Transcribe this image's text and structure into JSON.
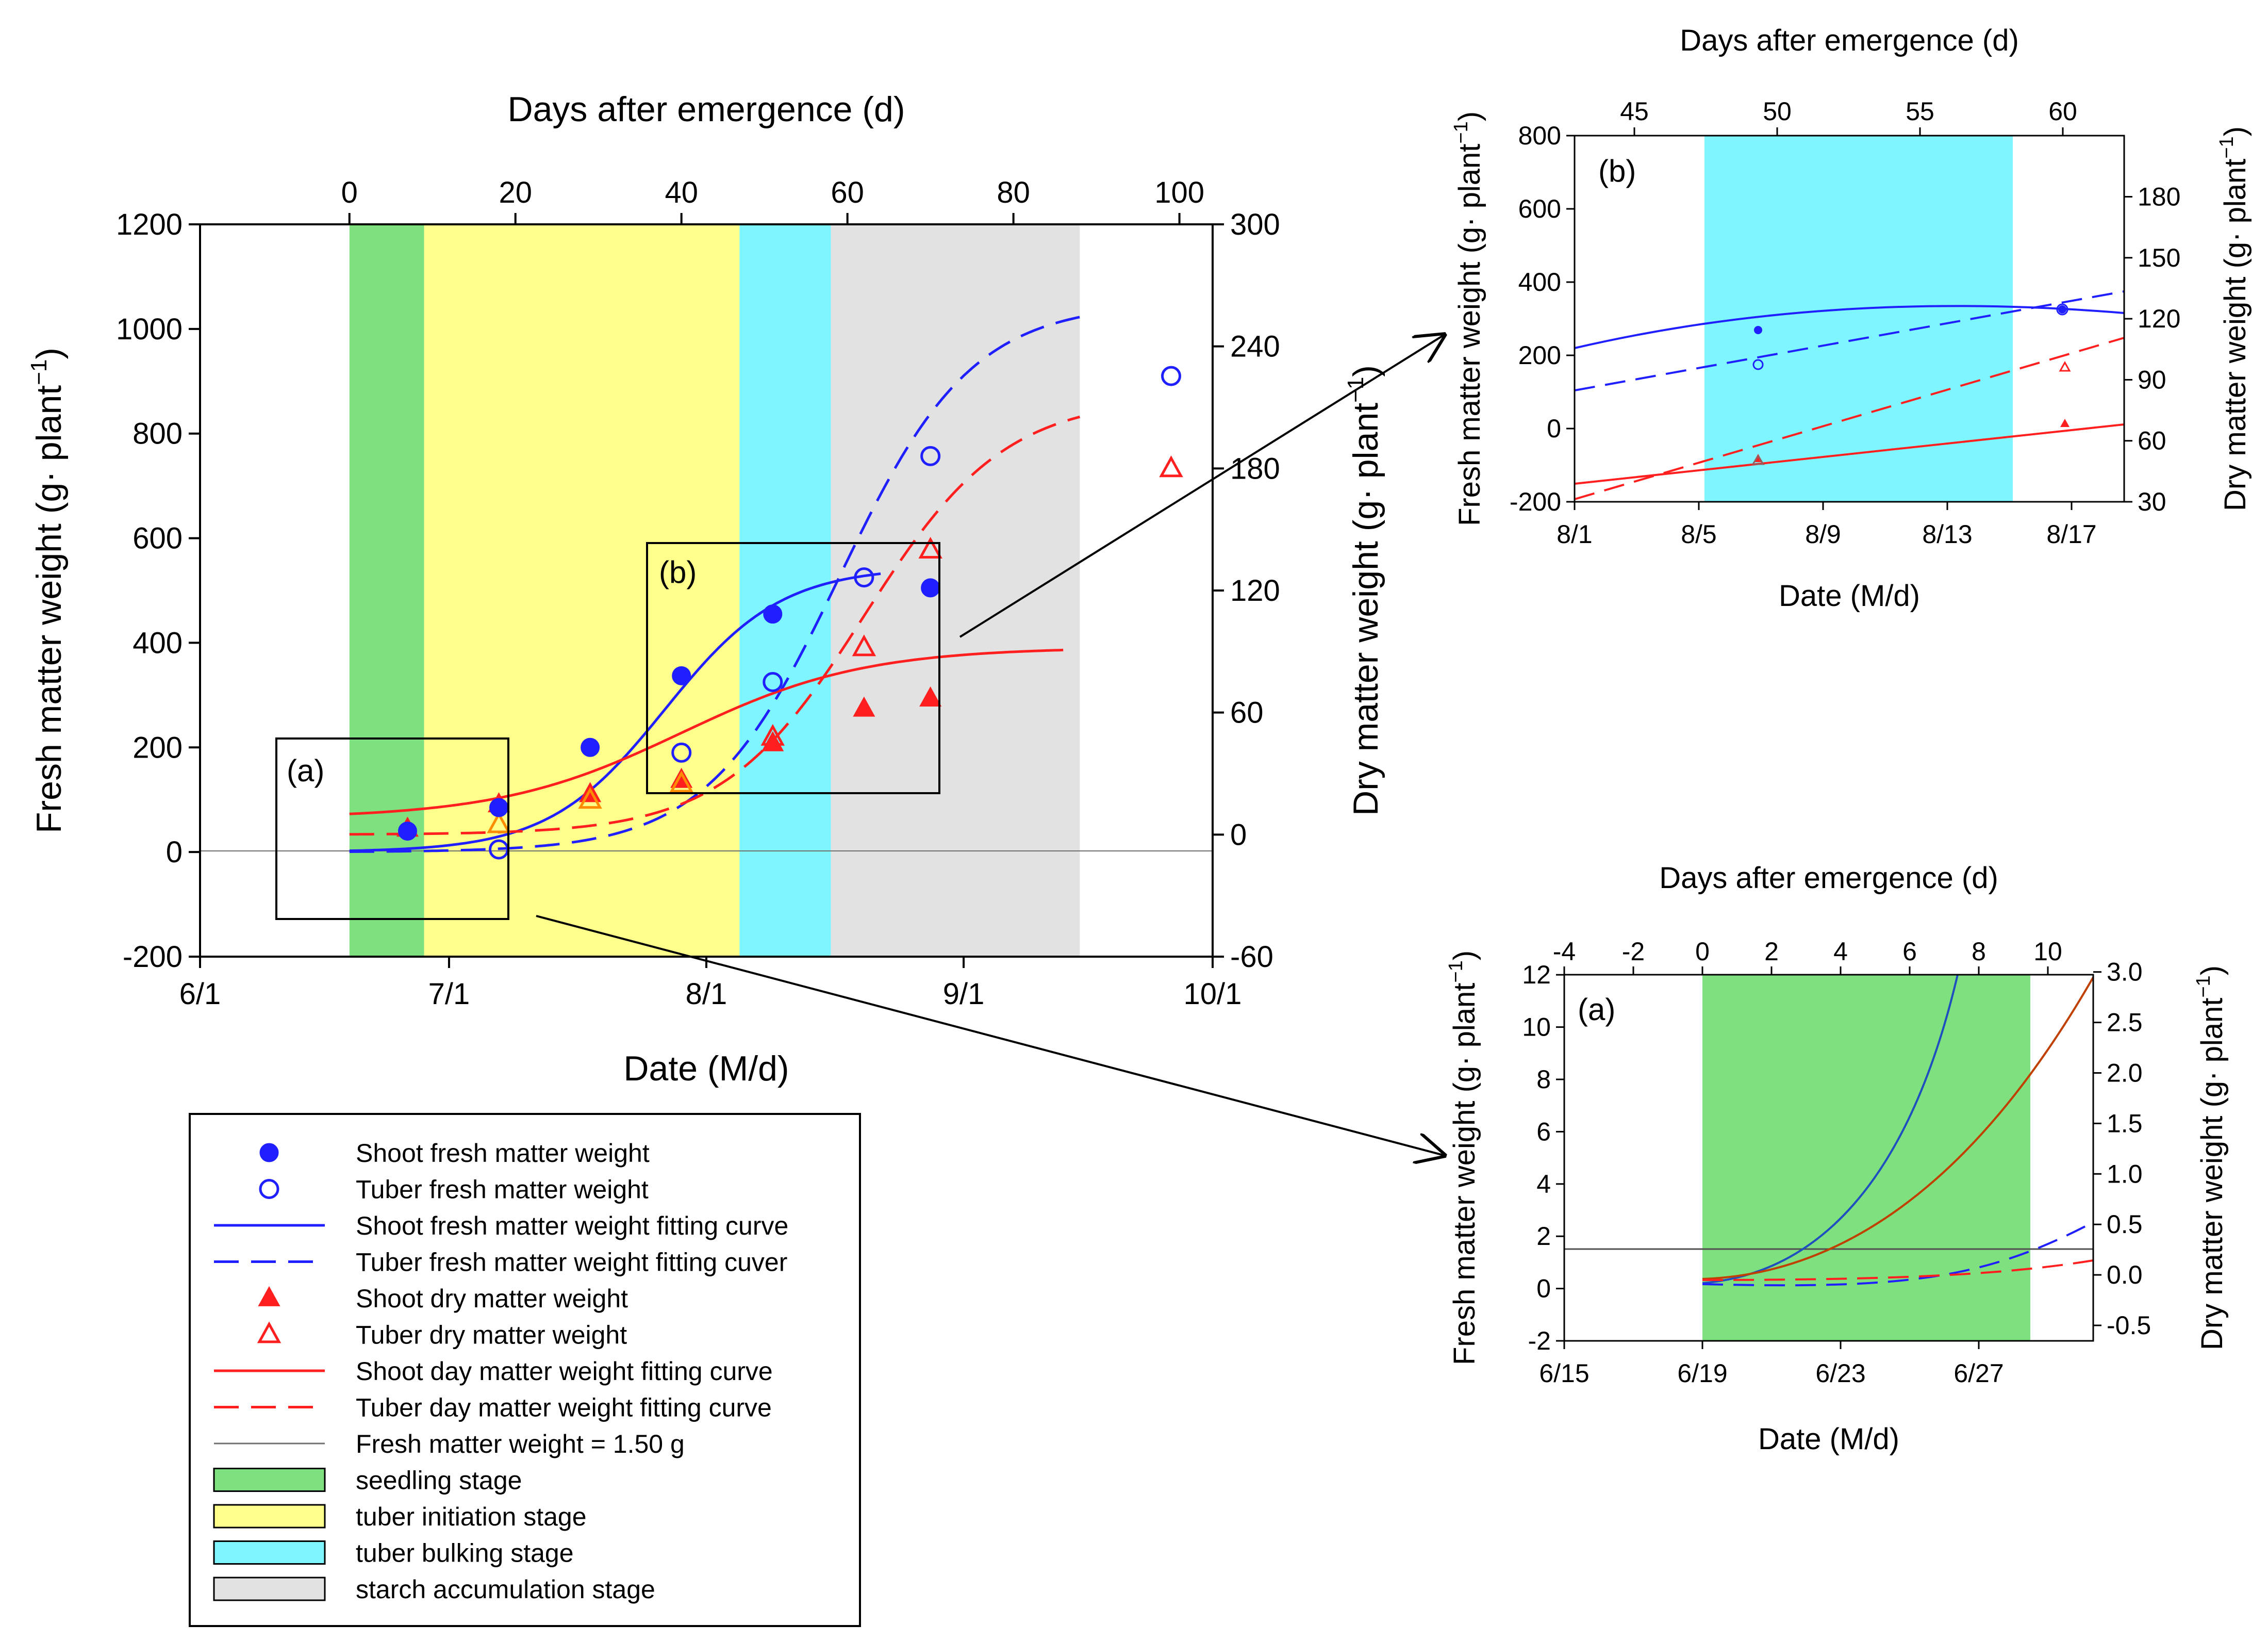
{
  "colors": {
    "blue": "#1f1fff",
    "red": "#ff1f1f",
    "orange": "#ff8c00",
    "brown": "#9b5a5a",
    "seedling": "#7fe07f",
    "tuber_initiation": "#ffff8c",
    "tuber_bulking": "#7ff5ff",
    "starch_accumulation": "#e2e2e2",
    "grey_line": "#707070"
  },
  "legend": {
    "items": [
      {
        "label": "Shoot fresh matter weight",
        "symbol": "filled-circle",
        "color": "#1f1fff"
      },
      {
        "label": "Tuber fresh matter weight",
        "symbol": "open-circle",
        "color": "#1f1fff"
      },
      {
        "label": "Shoot fresh matter weight fitting curve",
        "symbol": "solid-line",
        "color": "#1f1fff"
      },
      {
        "label": "Tuber fresh matter weight fitting cuver",
        "symbol": "dashed-line",
        "color": "#1f1fff"
      },
      {
        "label": "Shoot dry matter weight",
        "symbol": "filled-triangle",
        "color": "#ff1f1f"
      },
      {
        "label": "Tuber dry matter weight",
        "symbol": "open-triangle",
        "color": "#ff1f1f"
      },
      {
        "label": "Shoot day matter weight fitting curve",
        "symbol": "solid-line",
        "color": "#ff1f1f"
      },
      {
        "label": "Tuber day matter weight fitting curve",
        "symbol": "dashed-line",
        "color": "#ff1f1f"
      },
      {
        "label": "Fresh matter weight = 1.50 g",
        "symbol": "thin-line",
        "color": "#707070"
      },
      {
        "label": "seedling stage",
        "symbol": "patch",
        "color": "#7fe07f"
      },
      {
        "label": "tuber initiation stage",
        "symbol": "patch",
        "color": "#ffff8c"
      },
      {
        "label": "tuber bulking stage",
        "symbol": "patch",
        "color": "#7ff5ff"
      },
      {
        "label": "starch accumulation stage",
        "symbol": "patch",
        "color": "#e2e2e2"
      }
    ]
  },
  "chart_data": [
    {
      "id": "main",
      "type": "scatter",
      "xlabel": "Date (M/d)",
      "top_xlabel": "Days after emergence (d)",
      "ylabel": "Fresh matter weight (g· plant",
      "y2label": "Dry matter weight (g· plant",
      "ylabel_superscript": "−1",
      "xlim_day": [
        0,
        122
      ],
      "x_ticks": [
        {
          "day": 0,
          "label": "6/1"
        },
        {
          "day": 30,
          "label": "7/1"
        },
        {
          "day": 61,
          "label": "8/1"
        },
        {
          "day": 92,
          "label": "9/1"
        },
        {
          "day": 122,
          "label": "10/1"
        }
      ],
      "top_ticks": [
        "0",
        "20",
        "40",
        "60",
        "80",
        "100"
      ],
      "top_tick_days": [
        18,
        38,
        58,
        78,
        98,
        118
      ],
      "ylim": [
        -200,
        1200
      ],
      "y_ticks": [
        "-200",
        "0",
        "200",
        "400",
        "600",
        "800",
        "1000",
        "1200"
      ],
      "y2lim": [
        -60,
        300
      ],
      "y2_ticks": [
        "-60",
        "0",
        "60",
        "120",
        "180",
        "240",
        "300"
      ],
      "stages": [
        {
          "name": "seedling stage",
          "start_day": 18,
          "end_day": 27
        },
        {
          "name": "tuber initiation stage",
          "start_day": 27,
          "end_day": 65
        },
        {
          "name": "tuber bulking stage",
          "start_day": 65,
          "end_day": 76
        },
        {
          "name": "starch accumulation stage",
          "start_day": 76,
          "end_day": 106
        }
      ],
      "reference_line_y": 0,
      "series": [
        {
          "name": "Shoot fresh matter weight",
          "axis": "left",
          "points": [
            [
              25,
              40
            ],
            [
              36,
              85
            ],
            [
              47,
              200
            ],
            [
              58,
              337
            ],
            [
              69,
              455
            ],
            [
              88,
              505
            ]
          ]
        },
        {
          "name": "Tuber fresh matter weight",
          "axis": "left",
          "points": [
            [
              36,
              5
            ],
            [
              58,
              190
            ],
            [
              69,
              325
            ],
            [
              80,
              525
            ],
            [
              88,
              757
            ],
            [
              117,
              910
            ]
          ]
        },
        {
          "name": "Shoot dry matter weight",
          "axis": "right",
          "points": [
            [
              25,
              3
            ],
            [
              36,
              15
            ],
            [
              47,
              20
            ],
            [
              58,
              27
            ],
            [
              69,
              45
            ],
            [
              80,
              62
            ],
            [
              88,
              67
            ]
          ]
        },
        {
          "name": "Tuber dry matter weight",
          "axis": "right",
          "points": [
            [
              36,
              5
            ],
            [
              47,
              17
            ],
            [
              58,
              25
            ],
            [
              69,
              48
            ],
            [
              80,
              92
            ],
            [
              88,
              140
            ],
            [
              117,
              180
            ]
          ]
        }
      ],
      "curves": [
        {
          "name": "Shoot fresh matter weight fitting curve",
          "axis": "left",
          "style": "solid",
          "asym": 545,
          "mid": 56,
          "scale": 7,
          "x_from": 18,
          "x_to": 82
        },
        {
          "name": "Tuber fresh matter weight fitting cuver",
          "axis": "left",
          "style": "dashed",
          "asym": 1050,
          "mid": 77,
          "scale": 8,
          "x_from": 18,
          "x_to": 106
        },
        {
          "name": "Shoot day matter weight fitting curve",
          "axis": "right",
          "style": "solid",
          "asym": 84,
          "offset": 8,
          "mid": 58,
          "scale": 11,
          "x_from": 18,
          "x_to": 104
        },
        {
          "name": "Tuber day matter weight fitting curve",
          "axis": "right",
          "style": "dashed",
          "asym": 215,
          "mid": 80,
          "scale": 8.5,
          "x_from": 18,
          "x_to": 106
        }
      ],
      "tags": [
        "(a)",
        "(b)"
      ]
    },
    {
      "id": "inset_b",
      "type": "scatter",
      "tag": "(b)",
      "xlabel": "Date (M/d)",
      "top_xlabel": "Days after emergence (d)",
      "ylabel": "Fresh matter weight (g· plant",
      "y2label": "Dry matter weight (g· plant",
      "ylabel_superscript": "−1",
      "x_ticks": [
        "8/1",
        "8/5",
        "8/9",
        "8/13",
        "8/17"
      ],
      "top_ticks": [
        "45",
        "50",
        "55",
        "60"
      ],
      "ylim": [
        -200,
        800
      ],
      "y_ticks": [
        "-200",
        "0",
        "200",
        "400",
        "600",
        "800"
      ],
      "y2lim": [
        30,
        210
      ],
      "y2_ticks": [
        "30",
        "60",
        "90",
        "120",
        "150",
        "180"
      ],
      "stage": {
        "name": "tuber bulking stage",
        "start_day": 65,
        "end_day": 76
      },
      "points": [
        {
          "series": "Shoot fresh matter weight",
          "day": 67,
          "value": 265
        },
        {
          "series": "Tuber fresh matter weight",
          "day": 67,
          "value": 175
        },
        {
          "series": "Shoot fresh matter weight",
          "day": 78,
          "value": 320
        },
        {
          "series": "Tuber fresh matter weight",
          "day": 78,
          "value": 320
        },
        {
          "series": "Shoot dry matter weight",
          "day": 67,
          "value": 49
        },
        {
          "series": "Tuber dry matter weight",
          "day": 67,
          "value": 51
        },
        {
          "series": "Shoot dry matter weight",
          "day": 78,
          "value": 64
        },
        {
          "series": "Tuber dry matter weight",
          "day": 78,
          "value": 93
        }
      ]
    },
    {
      "id": "inset_a",
      "type": "line",
      "tag": "(a)",
      "xlabel": "Date (M/d)",
      "top_xlabel": "Days after emergence (d)",
      "ylabel": "Fresh matter weight (g· plant",
      "y2label": "Dry matter weight (g· plant",
      "ylabel_superscript": "−1",
      "x_ticks": [
        "6/15",
        "6/19",
        "6/23",
        "6/27"
      ],
      "top_ticks": [
        "-4",
        "-2",
        "0",
        "2",
        "4",
        "6",
        "8",
        "10"
      ],
      "ylim": [
        -2,
        12
      ],
      "y_ticks": [
        "-2",
        "0",
        "2",
        "4",
        "6",
        "8",
        "10",
        "12"
      ],
      "y2lim": [
        -0.5,
        3.0
      ],
      "y2_ticks": [
        "-0.5",
        "0.0",
        "0.5",
        "1.0",
        "1.5",
        "2.0",
        "2.5",
        "3.0"
      ],
      "stage": {
        "name": "seedling stage",
        "start_day": 0,
        "end_day": 9.3
      },
      "reference_line_y": 1.5
    }
  ]
}
